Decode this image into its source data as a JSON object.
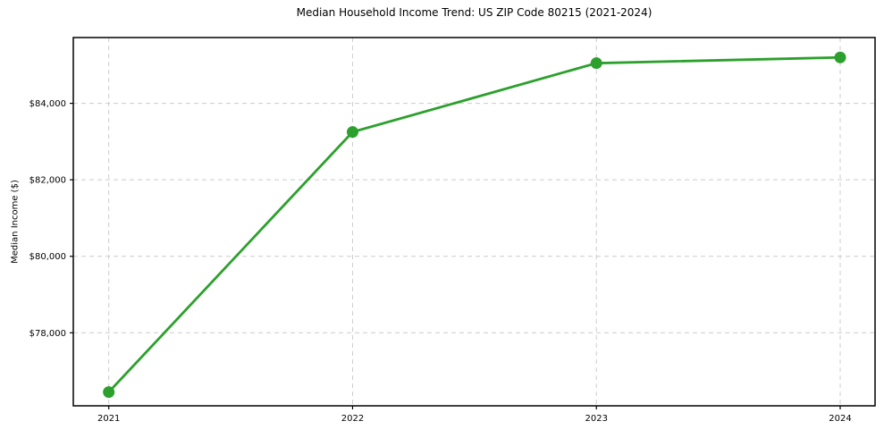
{
  "chart_data": {
    "type": "line",
    "title": "Median Household Income Trend: US ZIP Code 80215 (2021-2024)",
    "xlabel": "",
    "ylabel": "Median Income ($)",
    "categories": [
      "2021",
      "2022",
      "2023",
      "2024"
    ],
    "series": [
      {
        "name": "Median Household Income",
        "values": [
          76450,
          83250,
          85050,
          85200
        ]
      }
    ],
    "yticks": [
      {
        "value": 78000,
        "label": "$78,000"
      },
      {
        "value": 80000,
        "label": "$80,000"
      },
      {
        "value": 82000,
        "label": "$82,000"
      },
      {
        "value": 84000,
        "label": "$84,000"
      }
    ],
    "ylim": [
      76090,
      85720
    ],
    "grid": true,
    "grid_style": "dashed",
    "legend_position": "none",
    "marker": "circle",
    "colors": {
      "line": "#2ca02c",
      "marker": "#2ca02c",
      "grid": "#cccccc",
      "spine": "#000000",
      "text": "#000000",
      "background": "#ffffff"
    }
  }
}
